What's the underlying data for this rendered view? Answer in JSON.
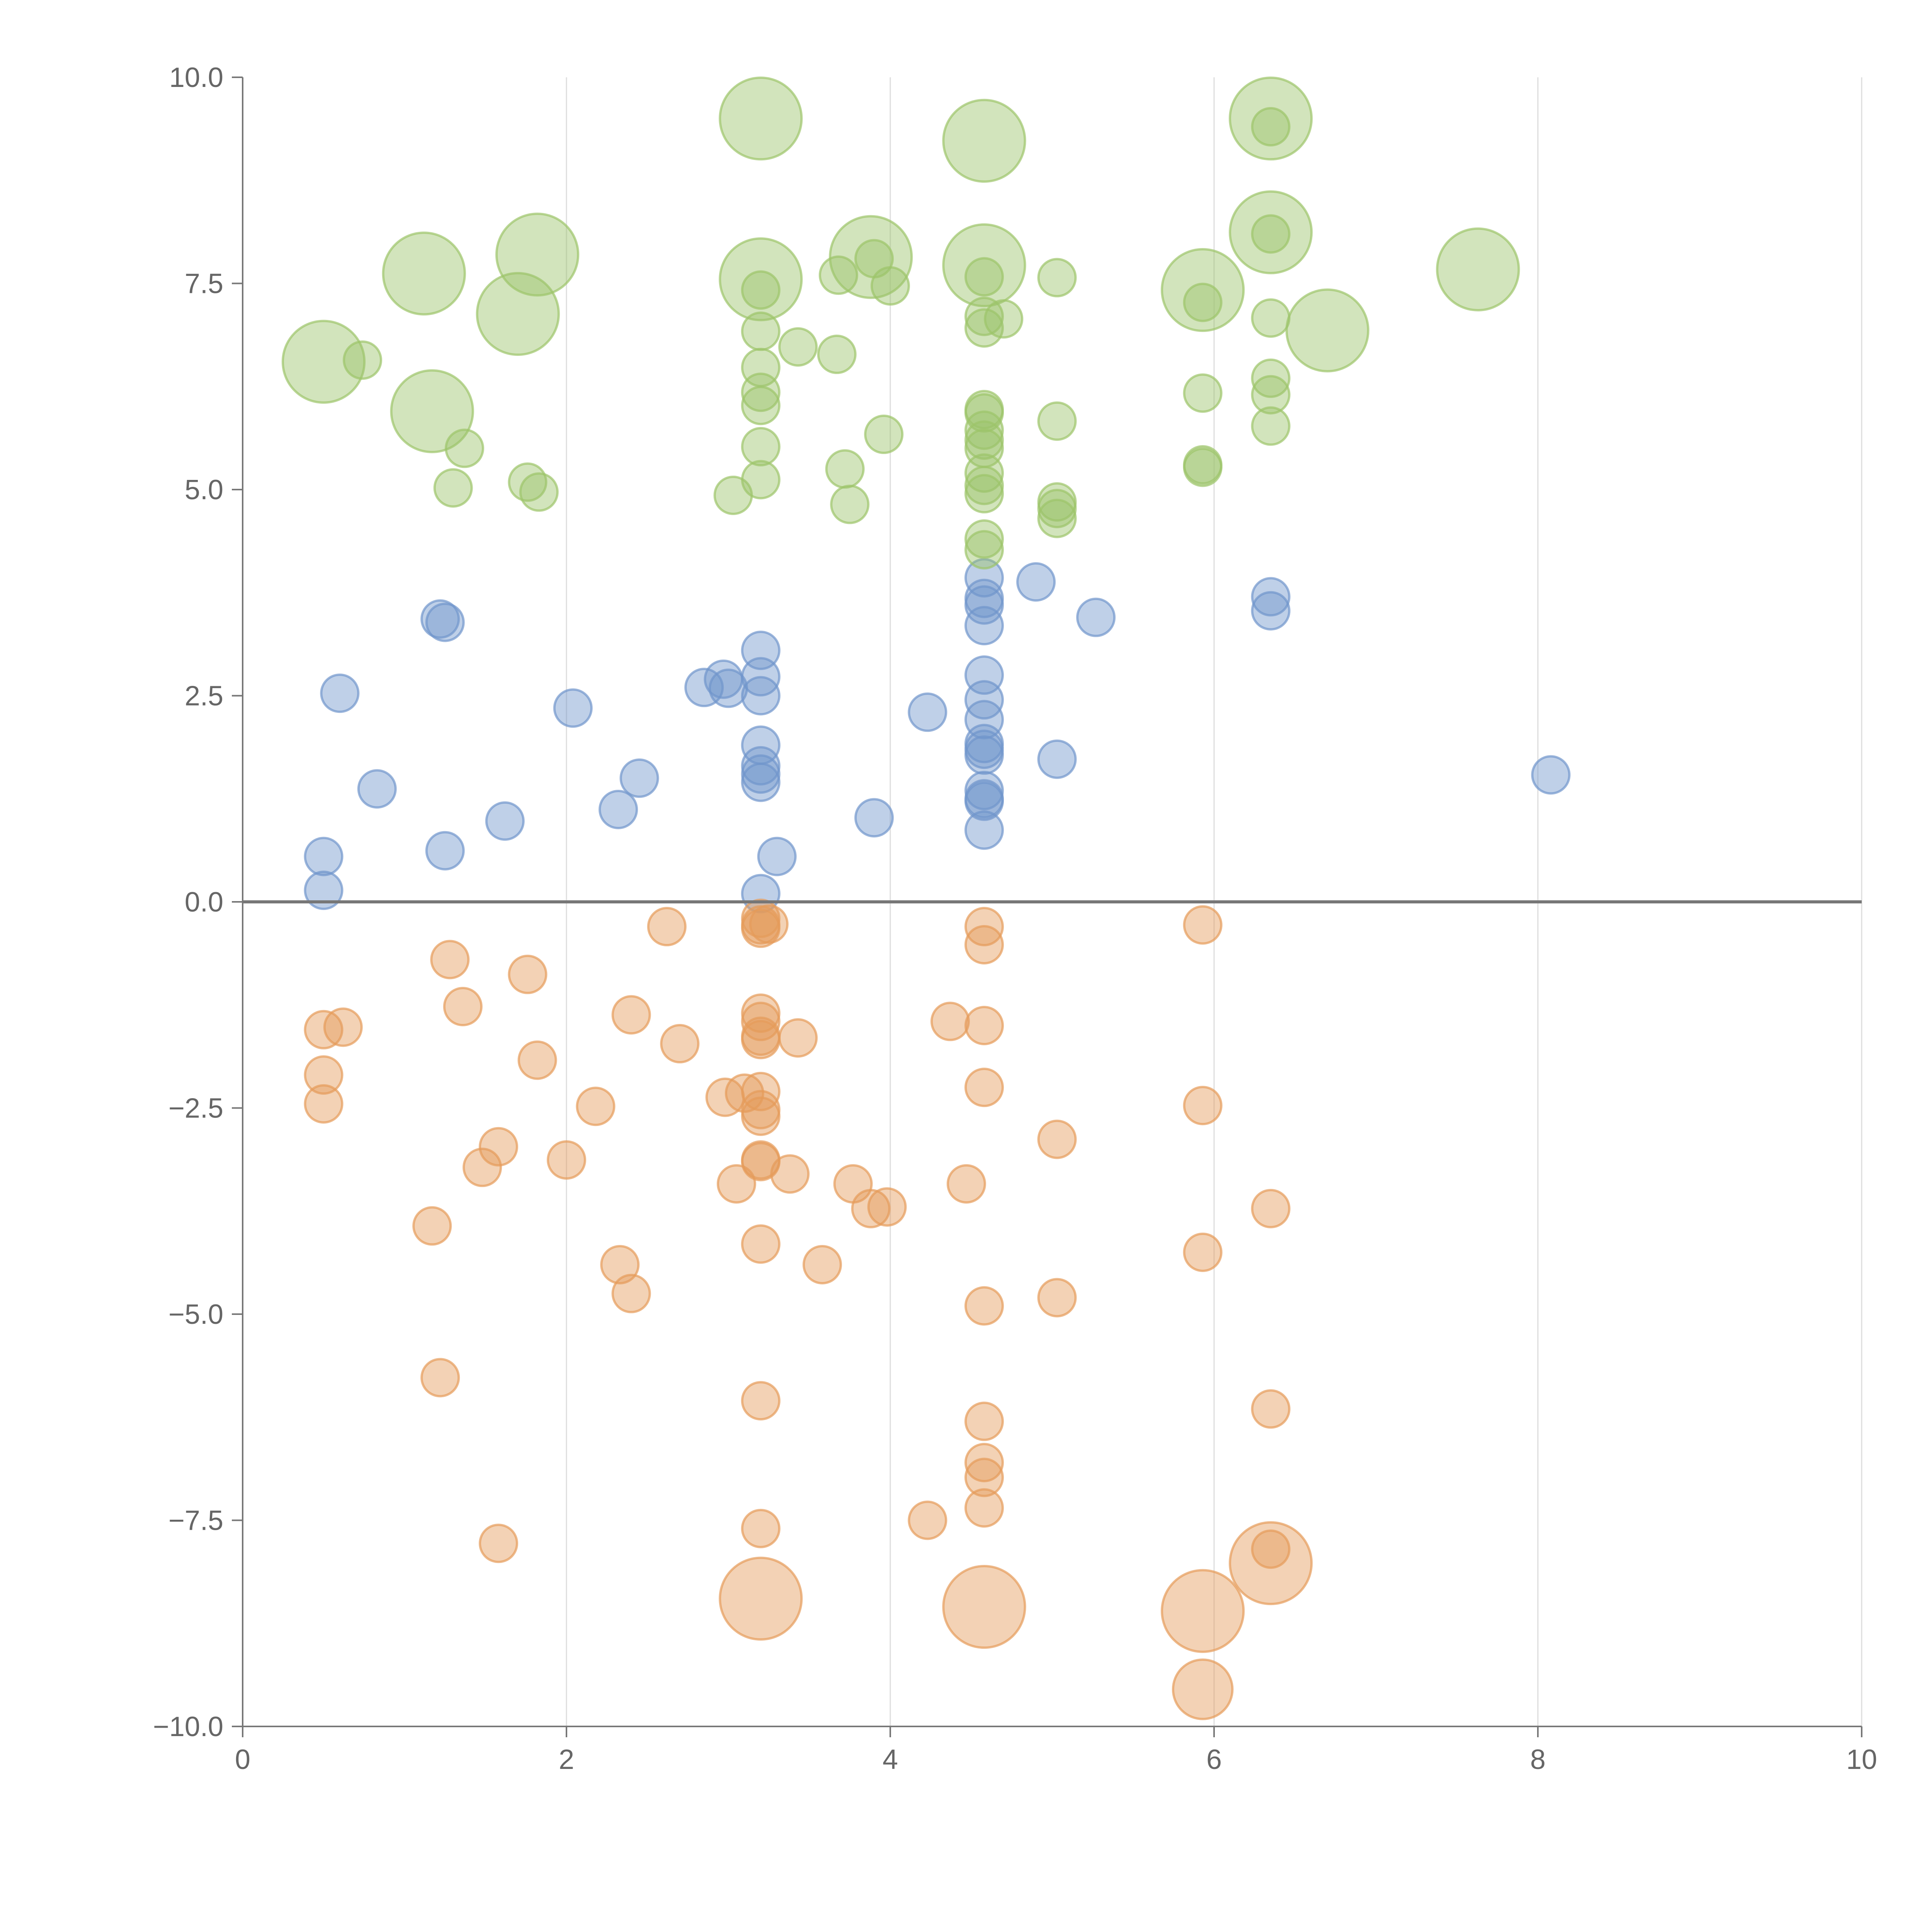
{
  "chart_data": {
    "type": "scatter",
    "title": "",
    "xlabel": "",
    "ylabel": "",
    "xlim": [
      0,
      10
    ],
    "ylim": [
      -10,
      10
    ],
    "x_ticks": [
      "0",
      "2",
      "4",
      "6",
      "8",
      "10"
    ],
    "y_ticks": [
      "10.0",
      "7.5",
      "5.0",
      "2.5",
      "0.0",
      "−2.5",
      "−5.0",
      "−7.5",
      "−10.0"
    ],
    "x_tick_values": [
      0,
      2,
      4,
      6,
      8,
      10
    ],
    "y_tick_values": [
      10,
      7.5,
      5,
      2.5,
      0,
      -2.5,
      -5,
      -7.5,
      -10
    ],
    "grid": "vertical",
    "zero_line": true,
    "colors": {
      "blue": "#7096cc",
      "green": "#9cc46a",
      "orange": "#e59b5a"
    },
    "series": [
      {
        "color_key": "blue",
        "points": [
          [
            0.5,
            0.55,
            1
          ],
          [
            0.5,
            0.14,
            1
          ],
          [
            0.6,
            2.53,
            1
          ],
          [
            0.83,
            1.37,
            1
          ],
          [
            1.22,
            3.43,
            1
          ],
          [
            1.25,
            3.39,
            1
          ],
          [
            1.25,
            0.62,
            1
          ],
          [
            1.62,
            0.98,
            1
          ],
          [
            2.04,
            2.35,
            1
          ],
          [
            2.32,
            1.12,
            1
          ],
          [
            2.45,
            1.5,
            1
          ],
          [
            2.85,
            2.6,
            1
          ],
          [
            2.97,
            2.7,
            1
          ],
          [
            3.0,
            2.59,
            1
          ],
          [
            3.2,
            3.05,
            1
          ],
          [
            3.2,
            2.73,
            1
          ],
          [
            3.2,
            2.5,
            1
          ],
          [
            3.2,
            1.9,
            1
          ],
          [
            3.2,
            1.65,
            1
          ],
          [
            3.2,
            1.55,
            1
          ],
          [
            3.2,
            1.45,
            1
          ],
          [
            3.2,
            0.1,
            1
          ],
          [
            3.3,
            0.55,
            1
          ],
          [
            3.9,
            1.02,
            1
          ],
          [
            4.23,
            2.3,
            1
          ],
          [
            4.58,
            3.93,
            1
          ],
          [
            4.58,
            3.68,
            1
          ],
          [
            4.58,
            3.6,
            1
          ],
          [
            4.58,
            3.35,
            1
          ],
          [
            4.58,
            2.75,
            1
          ],
          [
            4.58,
            2.45,
            1
          ],
          [
            4.58,
            2.21,
            1
          ],
          [
            4.58,
            1.92,
            1
          ],
          [
            4.58,
            1.85,
            1
          ],
          [
            4.58,
            1.78,
            1
          ],
          [
            4.58,
            1.35,
            1
          ],
          [
            4.58,
            1.25,
            1
          ],
          [
            4.58,
            1.22,
            1
          ],
          [
            4.58,
            0.87,
            1
          ],
          [
            4.9,
            3.88,
            1
          ],
          [
            5.03,
            1.73,
            1
          ],
          [
            5.27,
            3.45,
            1
          ],
          [
            6.35,
            3.7,
            1
          ],
          [
            6.35,
            3.53,
            1
          ],
          [
            8.08,
            1.54,
            1
          ]
        ]
      },
      {
        "color_key": "green",
        "points": [
          [
            0.5,
            6.55,
            2.2
          ],
          [
            0.74,
            6.57,
            1
          ],
          [
            1.12,
            7.62,
            2.2
          ],
          [
            1.17,
            5.95,
            2.2
          ],
          [
            1.3,
            5.02,
            1
          ],
          [
            1.37,
            5.5,
            1
          ],
          [
            1.7,
            7.13,
            2.2
          ],
          [
            1.76,
            5.09,
            1
          ],
          [
            1.82,
            7.85,
            2.2
          ],
          [
            1.83,
            4.97,
            1
          ],
          [
            3.03,
            4.93,
            1
          ],
          [
            3.2,
            9.5,
            2.2
          ],
          [
            3.2,
            7.55,
            2.2
          ],
          [
            3.2,
            7.42,
            1
          ],
          [
            3.2,
            6.92,
            1
          ],
          [
            3.2,
            6.48,
            1
          ],
          [
            3.2,
            6.18,
            1
          ],
          [
            3.2,
            6.02,
            1
          ],
          [
            3.2,
            5.52,
            1
          ],
          [
            3.2,
            5.12,
            1
          ],
          [
            3.43,
            6.73,
            1
          ],
          [
            3.67,
            6.64,
            1
          ],
          [
            3.68,
            7.6,
            1
          ],
          [
            3.72,
            5.25,
            1
          ],
          [
            3.75,
            4.82,
            1
          ],
          [
            3.88,
            7.82,
            2.2
          ],
          [
            3.9,
            7.8,
            1
          ],
          [
            3.96,
            5.67,
            1
          ],
          [
            4.0,
            7.47,
            1
          ],
          [
            4.58,
            9.23,
            2.2
          ],
          [
            4.58,
            7.72,
            2.2
          ],
          [
            4.58,
            7.58,
            1
          ],
          [
            4.58,
            7.1,
            1
          ],
          [
            4.58,
            6.96,
            1
          ],
          [
            4.58,
            5.97,
            1
          ],
          [
            4.58,
            5.93,
            1
          ],
          [
            4.58,
            5.72,
            1
          ],
          [
            4.58,
            5.6,
            1
          ],
          [
            4.58,
            5.5,
            1
          ],
          [
            4.58,
            5.2,
            1
          ],
          [
            4.58,
            5.05,
            1
          ],
          [
            4.58,
            4.95,
            1
          ],
          [
            4.58,
            4.4,
            1
          ],
          [
            4.58,
            4.27,
            1
          ],
          [
            4.7,
            7.07,
            1
          ],
          [
            5.03,
            7.57,
            1
          ],
          [
            5.03,
            5.83,
            1
          ],
          [
            5.03,
            4.85,
            1
          ],
          [
            5.03,
            4.77,
            1
          ],
          [
            5.03,
            4.65,
            1
          ],
          [
            5.93,
            7.42,
            2.2
          ],
          [
            5.93,
            7.27,
            1
          ],
          [
            5.93,
            6.17,
            1
          ],
          [
            5.93,
            5.3,
            1
          ],
          [
            5.93,
            5.27,
            1
          ],
          [
            6.35,
            9.5,
            2.2
          ],
          [
            6.35,
            9.4,
            1
          ],
          [
            6.35,
            8.12,
            2.2
          ],
          [
            6.35,
            8.1,
            1
          ],
          [
            6.35,
            7.08,
            1
          ],
          [
            6.35,
            6.35,
            1
          ],
          [
            6.35,
            6.15,
            1
          ],
          [
            6.35,
            5.77,
            1
          ],
          [
            6.7,
            6.93,
            2.2
          ],
          [
            7.63,
            7.67,
            2.2
          ]
        ]
      },
      {
        "color_key": "orange",
        "points": [
          [
            0.5,
            -1.55,
            1
          ],
          [
            0.5,
            -2.1,
            1
          ],
          [
            0.5,
            -2.45,
            1
          ],
          [
            0.62,
            -1.52,
            1
          ],
          [
            1.17,
            -3.93,
            1
          ],
          [
            1.22,
            -5.77,
            1
          ],
          [
            1.28,
            -0.7,
            1
          ],
          [
            1.36,
            -1.27,
            1
          ],
          [
            1.48,
            -3.22,
            1
          ],
          [
            1.58,
            -2.97,
            1
          ],
          [
            1.58,
            -7.78,
            1
          ],
          [
            1.76,
            -0.88,
            1
          ],
          [
            1.82,
            -1.92,
            1
          ],
          [
            2.0,
            -3.13,
            1
          ],
          [
            2.18,
            -2.48,
            1
          ],
          [
            2.33,
            -4.4,
            1
          ],
          [
            2.4,
            -1.37,
            1
          ],
          [
            2.4,
            -4.75,
            1
          ],
          [
            2.62,
            -0.3,
            1
          ],
          [
            2.7,
            -1.72,
            1
          ],
          [
            2.98,
            -2.37,
            1
          ],
          [
            3.05,
            -3.42,
            1
          ],
          [
            3.1,
            -2.32,
            1
          ],
          [
            3.2,
            -0.2,
            1
          ],
          [
            3.2,
            -0.28,
            1
          ],
          [
            3.2,
            -0.32,
            1
          ],
          [
            3.2,
            -1.35,
            1
          ],
          [
            3.2,
            -1.45,
            1
          ],
          [
            3.2,
            -1.63,
            1
          ],
          [
            3.2,
            -1.67,
            1
          ],
          [
            3.2,
            -2.3,
            1
          ],
          [
            3.2,
            -2.52,
            1
          ],
          [
            3.2,
            -2.6,
            1
          ],
          [
            3.2,
            -3.13,
            1
          ],
          [
            3.2,
            -3.15,
            1
          ],
          [
            3.2,
            -4.15,
            1
          ],
          [
            3.2,
            -6.05,
            1
          ],
          [
            3.2,
            -7.6,
            1
          ],
          [
            3.2,
            -8.45,
            2.2
          ],
          [
            3.25,
            -0.27,
            1
          ],
          [
            3.38,
            -3.3,
            1
          ],
          [
            3.43,
            -1.65,
            1
          ],
          [
            3.58,
            -4.4,
            1
          ],
          [
            3.77,
            -3.42,
            1
          ],
          [
            3.88,
            -3.72,
            1
          ],
          [
            3.98,
            -3.7,
            1
          ],
          [
            4.23,
            -7.5,
            1
          ],
          [
            4.37,
            -1.45,
            1
          ],
          [
            4.47,
            -3.42,
            1
          ],
          [
            4.58,
            -0.3,
            1
          ],
          [
            4.58,
            -0.52,
            1
          ],
          [
            4.58,
            -1.5,
            1
          ],
          [
            4.58,
            -2.25,
            1
          ],
          [
            4.58,
            -4.9,
            1
          ],
          [
            4.58,
            -6.3,
            1
          ],
          [
            4.58,
            -6.8,
            1
          ],
          [
            4.58,
            -6.98,
            1
          ],
          [
            4.58,
            -7.35,
            1
          ],
          [
            4.58,
            -8.55,
            2.2
          ],
          [
            5.03,
            -2.88,
            1
          ],
          [
            5.03,
            -4.8,
            1
          ],
          [
            5.93,
            -0.28,
            1
          ],
          [
            5.93,
            -2.47,
            1
          ],
          [
            5.93,
            -4.25,
            1
          ],
          [
            5.93,
            -8.6,
            2.2
          ],
          [
            5.93,
            -9.55,
            1.6
          ],
          [
            6.35,
            -3.72,
            1
          ],
          [
            6.35,
            -6.15,
            1
          ],
          [
            6.35,
            -8.02,
            2.2
          ],
          [
            6.35,
            -7.85,
            1
          ]
        ]
      }
    ]
  }
}
